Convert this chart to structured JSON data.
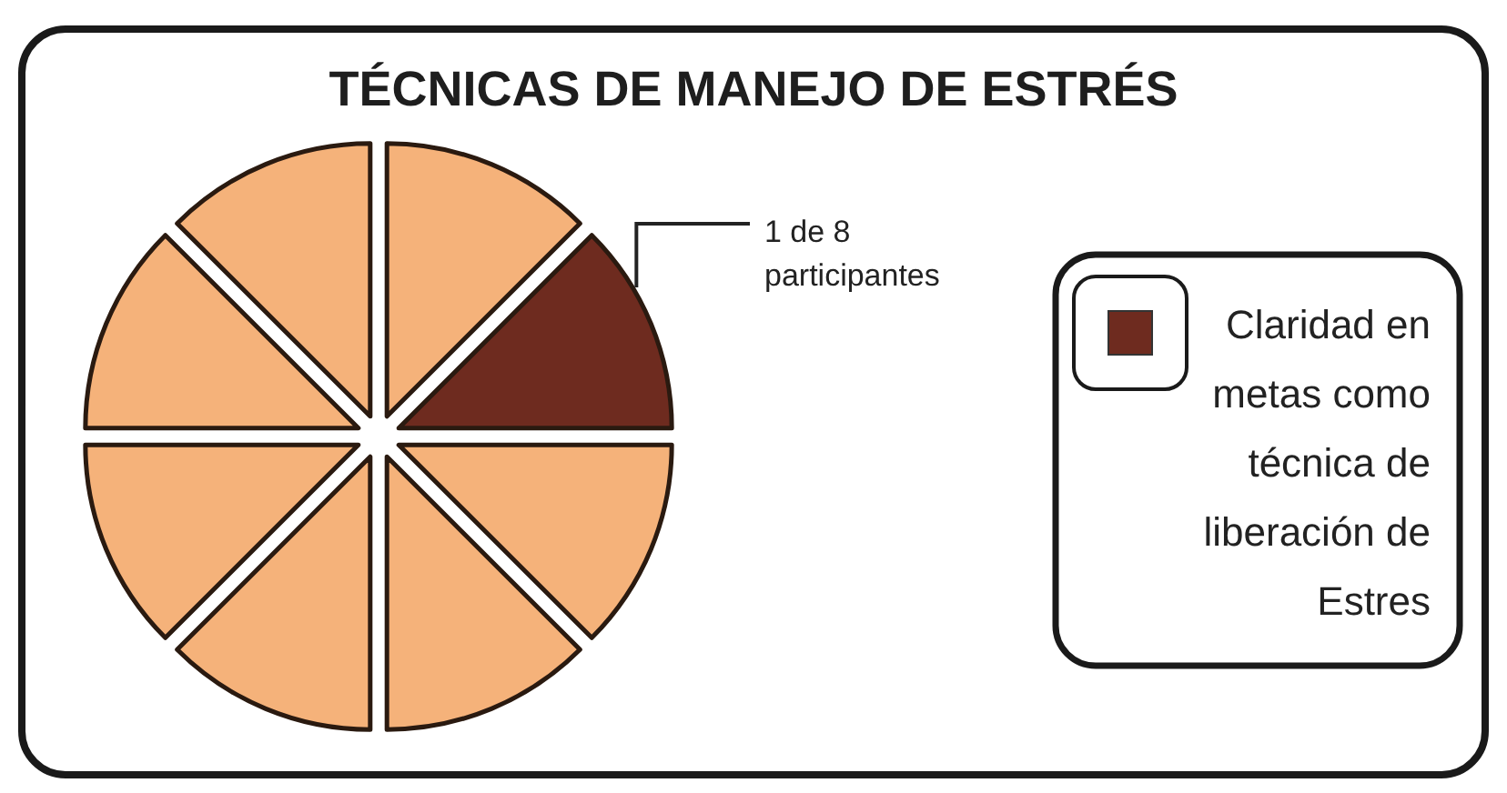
{
  "chart_data": {
    "type": "pie",
    "title": "TÉCNICAS DE MANEJO DE ESTRÉS",
    "categories": [
      null,
      "Claridad en metas como técnica de liberación de Estres",
      null,
      null,
      null,
      null,
      null,
      null
    ],
    "values": [
      12.5,
      12.5,
      12.5,
      12.5,
      12.5,
      12.5,
      12.5,
      12.5
    ],
    "colors": [
      "#f5b27a",
      "#6e2b1f",
      "#f5b27a",
      "#f5b27a",
      "#f5b27a",
      "#f5b27a",
      "#f5b27a",
      "#f5b27a"
    ],
    "annotations": [
      "1 de 8 participantes"
    ],
    "legend": "right"
  }
}
